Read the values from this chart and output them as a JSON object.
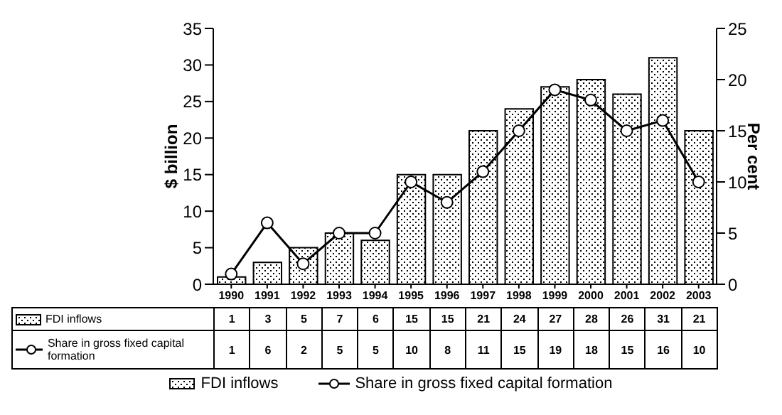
{
  "chart_data": {
    "type": "bar",
    "categories": [
      "1990",
      "1991",
      "1992",
      "1993",
      "1994",
      "1995",
      "1996",
      "1997",
      "1998",
      "1999",
      "2000",
      "2001",
      "2002",
      "2003"
    ],
    "series": [
      {
        "name": "FDI inflows",
        "color": "#000000",
        "values": [
          1,
          3,
          5,
          7,
          6,
          15,
          15,
          21,
          24,
          27,
          28,
          26,
          31,
          21
        ],
        "value_labels": [
          "1",
          "3",
          "5",
          "7",
          "6",
          "15",
          "15",
          "21",
          "24",
          "27",
          "28",
          "26",
          "31",
          "21"
        ]
      },
      {
        "name": "Share in gross fixed capital formation",
        "type": "line",
        "axis": "y2",
        "color": "#000000",
        "values": [
          1,
          6,
          2,
          5,
          5,
          10,
          8,
          11,
          15,
          19,
          18,
          15,
          16,
          10
        ],
        "value_labels": [
          "1",
          "6",
          "2",
          "5",
          "5",
          "10",
          "8",
          "11",
          "15",
          "19",
          "18",
          "15",
          "16",
          "10"
        ]
      }
    ],
    "ylabel": "$ billion",
    "y2label": "Per cent",
    "ylim": [
      0,
      35
    ],
    "yticks": [
      0,
      5,
      10,
      15,
      20,
      25,
      30,
      35
    ],
    "y2lim": [
      0,
      25
    ],
    "y2ticks": [
      0,
      5,
      10,
      15,
      20,
      25
    ],
    "legend": "bottom",
    "marker": "circle",
    "grid": false
  }
}
